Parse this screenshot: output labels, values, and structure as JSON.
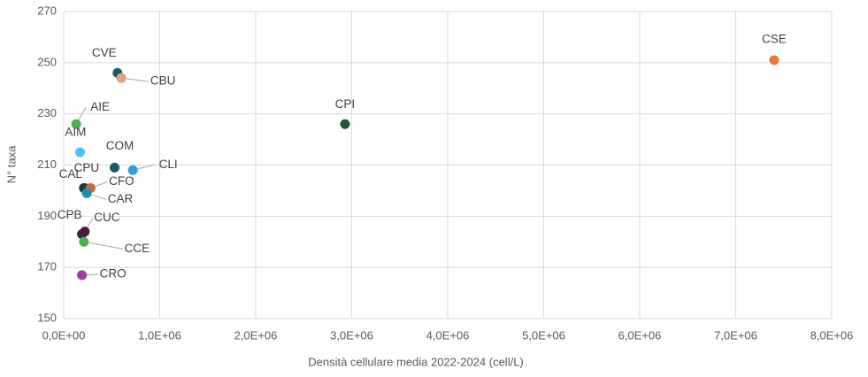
{
  "chart_data": {
    "type": "scatter",
    "x_label": "Densità cellulare media 2022-2024 (cell/L)",
    "y_label": "N° taxa",
    "labels": [
      "CSE",
      "CPI",
      "CVE",
      "CBU",
      "AIE",
      "AIM",
      "COM",
      "CLI",
      "CPU",
      "CAL",
      "CFO",
      "CAR",
      "CPB",
      "CUC",
      "CCE",
      "CRO"
    ],
    "x": [
      7400000,
      2930000,
      560000,
      600000,
      130000,
      170000,
      530000,
      720000,
      220000,
      210000,
      280000,
      240000,
      190000,
      220000,
      210000,
      190000
    ],
    "values": [
      251,
      226,
      246,
      244,
      226,
      215,
      209,
      208,
      201,
      201,
      201,
      199,
      183,
      184,
      180,
      167
    ],
    "colors": [
      "#e8793a",
      "#1e5631",
      "#1a5a6e",
      "#e8a07a",
      "#4caf50",
      "#4fc3f7",
      "#1a5a6e",
      "#2e9fd9",
      "#2a6f8a",
      "#1e3a2a",
      "#c8693a",
      "#1f8fb0",
      "#2a2a4a",
      "#4a1942",
      "#4caf50",
      "#9c3fa0"
    ],
    "xlim": [
      0,
      8000000
    ],
    "xticks": [
      {
        "value": 0,
        "label": "0,0E+00"
      },
      {
        "value": 1000000,
        "label": "1,0E+06"
      },
      {
        "value": 2000000,
        "label": "2,0E+06"
      },
      {
        "value": 3000000,
        "label": "3,0E+06"
      },
      {
        "value": 4000000,
        "label": "4,0E+06"
      },
      {
        "value": 5000000,
        "label": "5,0E+06"
      },
      {
        "value": 6000000,
        "label": "6,0E+06"
      },
      {
        "value": 7000000,
        "label": "7,0E+06"
      },
      {
        "value": 8000000,
        "label": "8,0E+06"
      }
    ],
    "ylim": [
      150,
      270
    ],
    "yticks": [
      150,
      170,
      190,
      210,
      230,
      250,
      270
    ],
    "grid": true
  }
}
